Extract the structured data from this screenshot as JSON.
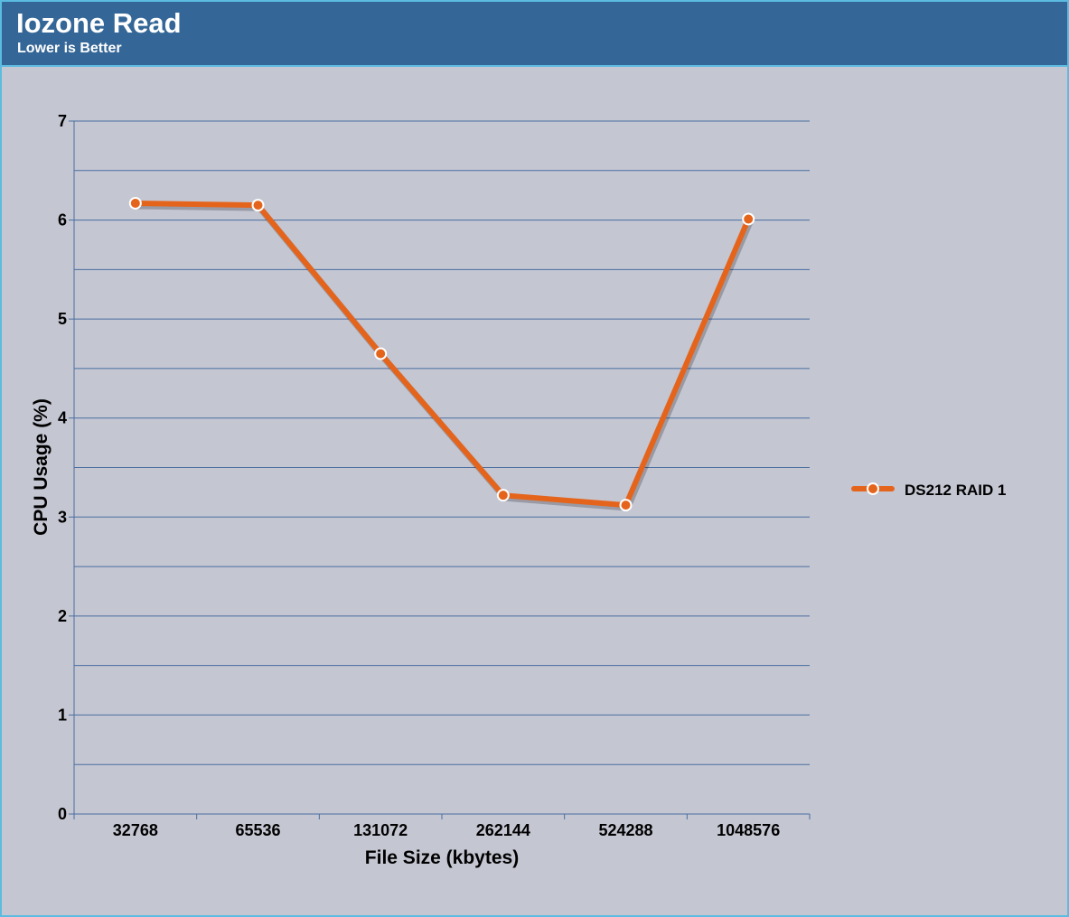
{
  "header": {
    "title": "Iozone Read",
    "subtitle": "Lower is Better"
  },
  "colors": {
    "header_bg": "#346797",
    "plot_bg": "#c4c6d2",
    "grid": "#4a6ea0",
    "series": "#e5641c",
    "border": "#5bbbe0"
  },
  "chart_data": {
    "type": "line",
    "title": "Iozone Read",
    "subtitle": "Lower is Better",
    "xlabel": "File Size (kbytes)",
    "ylabel": "CPU Usage (%)",
    "categories": [
      "32768",
      "65536",
      "131072",
      "262144",
      "524288",
      "1048576"
    ],
    "ylim": [
      0,
      7
    ],
    "yticks": [
      0,
      1,
      2,
      3,
      4,
      5,
      6,
      7
    ],
    "grid": true,
    "legend_position": "right",
    "series": [
      {
        "name": "DS212 RAID 1",
        "values": [
          6.17,
          6.15,
          4.65,
          3.22,
          3.12,
          6.01
        ]
      }
    ]
  }
}
